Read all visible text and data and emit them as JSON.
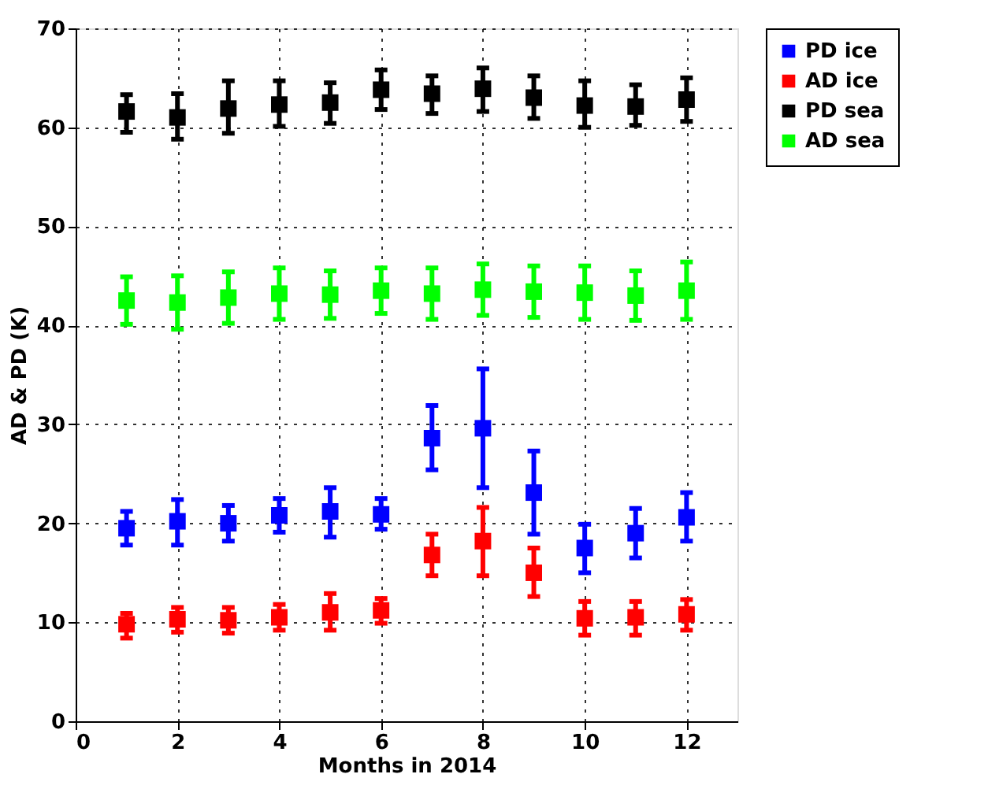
{
  "chart_data": {
    "type": "scatter",
    "xlabel": "Months in 2014",
    "ylabel": "AD & PD (K)",
    "x": [
      1,
      2,
      3,
      4,
      5,
      6,
      7,
      8,
      9,
      10,
      11,
      12
    ],
    "xlim": [
      0,
      13
    ],
    "xticks": [
      0,
      2,
      4,
      6,
      8,
      10,
      12
    ],
    "ylim": [
      0,
      70
    ],
    "yticks": [
      0,
      10,
      20,
      30,
      40,
      50,
      60,
      70
    ],
    "grid": true,
    "legend": "right",
    "marker": "square",
    "series": [
      {
        "name": "PD ice",
        "color": "#0000ff",
        "values": [
          19.5,
          20.2,
          20.0,
          20.8,
          21.2,
          20.9,
          28.6,
          29.6,
          23.1,
          17.5,
          19.0,
          20.6
        ],
        "errors": [
          [
            17.8,
            21.2
          ],
          [
            17.8,
            22.4
          ],
          [
            18.2,
            21.8
          ],
          [
            19.1,
            22.5
          ],
          [
            18.6,
            23.6
          ],
          [
            19.4,
            22.5
          ],
          [
            25.4,
            31.9
          ],
          [
            23.6,
            35.6
          ],
          [
            18.9,
            27.3
          ],
          [
            15.0,
            19.9
          ],
          [
            16.5,
            21.5
          ],
          [
            18.2,
            23.1
          ]
        ]
      },
      {
        "name": "AD ice",
        "color": "#ff0000",
        "values": [
          9.8,
          10.3,
          10.2,
          10.5,
          11.0,
          11.2,
          16.8,
          18.2,
          15.0,
          10.4,
          10.5,
          10.8
        ],
        "errors": [
          [
            8.4,
            10.9
          ],
          [
            9.0,
            11.5
          ],
          [
            8.9,
            11.5
          ],
          [
            9.2,
            11.8
          ],
          [
            9.2,
            12.9
          ],
          [
            9.9,
            12.4
          ],
          [
            14.7,
            18.9
          ],
          [
            14.7,
            21.6
          ],
          [
            12.6,
            17.5
          ],
          [
            8.7,
            12.1
          ],
          [
            8.7,
            12.1
          ],
          [
            9.2,
            12.3
          ]
        ]
      },
      {
        "name": "PD sea",
        "color": "#000000",
        "values": [
          61.6,
          61.0,
          61.9,
          62.3,
          62.5,
          63.8,
          63.4,
          63.9,
          63.0,
          62.2,
          62.1,
          62.8
        ],
        "errors": [
          [
            59.5,
            63.3
          ],
          [
            58.8,
            63.4
          ],
          [
            59.4,
            64.7
          ],
          [
            60.1,
            64.7
          ],
          [
            60.4,
            64.5
          ],
          [
            61.8,
            65.8
          ],
          [
            61.4,
            65.2
          ],
          [
            61.6,
            66.0
          ],
          [
            60.9,
            65.2
          ],
          [
            60.0,
            64.7
          ],
          [
            60.2,
            64.3
          ],
          [
            60.6,
            65.0
          ]
        ]
      },
      {
        "name": "AD sea",
        "color": "#00ff00",
        "values": [
          42.5,
          42.3,
          42.8,
          43.2,
          43.1,
          43.5,
          43.2,
          43.6,
          43.4,
          43.3,
          43.0,
          43.5
        ],
        "errors": [
          [
            40.1,
            44.9
          ],
          [
            39.6,
            45.0
          ],
          [
            40.2,
            45.4
          ],
          [
            40.6,
            45.8
          ],
          [
            40.7,
            45.5
          ],
          [
            41.2,
            45.8
          ],
          [
            40.6,
            45.8
          ],
          [
            41.0,
            46.2
          ],
          [
            40.8,
            46.0
          ],
          [
            40.6,
            46.0
          ],
          [
            40.5,
            45.5
          ],
          [
            40.6,
            46.4
          ]
        ]
      }
    ]
  }
}
